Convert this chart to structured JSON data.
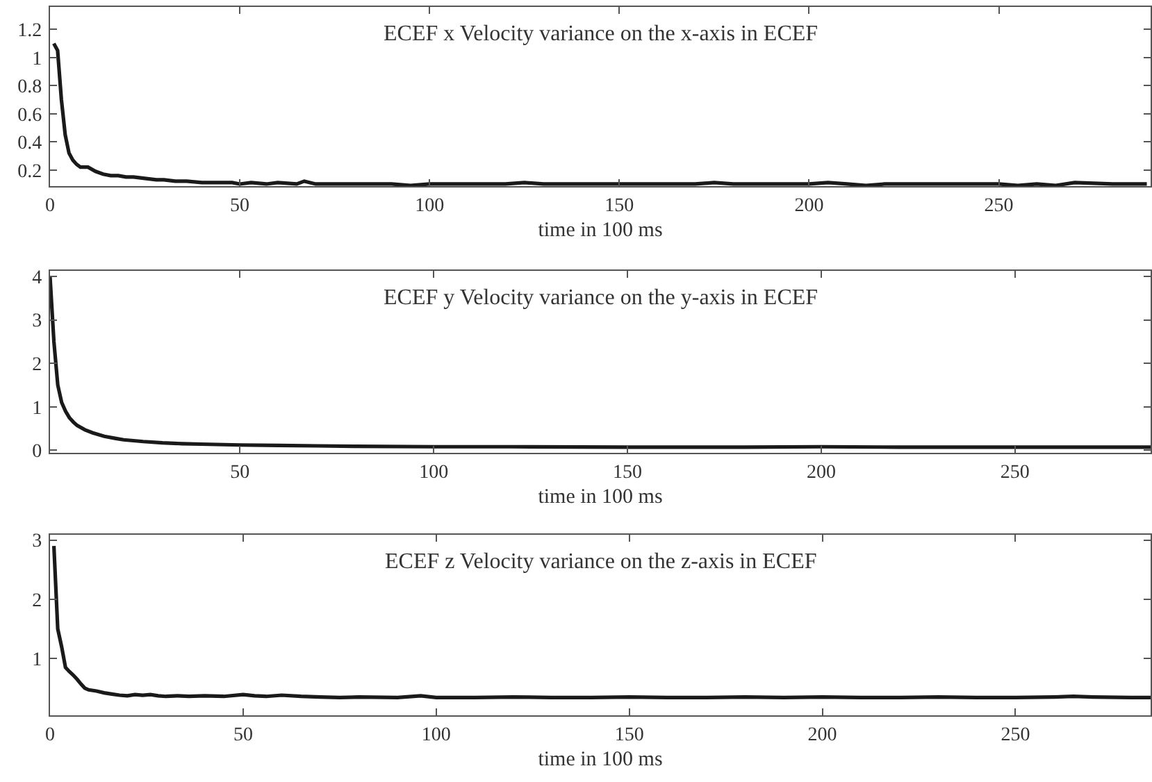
{
  "chart_data": [
    {
      "type": "line",
      "title": "ECEF x Velocity variance on the x-axis in ECEF",
      "xlabel": "time in 100 ms",
      "xlim": [
        0,
        290
      ],
      "ylim": [
        0.085,
        1.36
      ],
      "xticks": [
        0,
        50,
        100,
        150,
        200,
        250
      ],
      "yticks": [
        0.2,
        0.4,
        0.6,
        0.8,
        1,
        1.2
      ],
      "line_style": "solid",
      "x": [
        1,
        2,
        3,
        4,
        5,
        6,
        7,
        8,
        10,
        12,
        14,
        16,
        18,
        20,
        22,
        25,
        28,
        30,
        33,
        36,
        40,
        45,
        48,
        50,
        53,
        57,
        60,
        65,
        67,
        70,
        75,
        80,
        90,
        95,
        100,
        110,
        120,
        125,
        130,
        140,
        150,
        160,
        170,
        175,
        180,
        190,
        200,
        205,
        210,
        215,
        220,
        230,
        240,
        250,
        255,
        260,
        265,
        270,
        280,
        289
      ],
      "series": [
        {
          "color": "#1a1a1a",
          "values": [
            1.1,
            1.05,
            0.7,
            0.45,
            0.32,
            0.27,
            0.24,
            0.22,
            0.22,
            0.19,
            0.17,
            0.16,
            0.16,
            0.15,
            0.15,
            0.14,
            0.13,
            0.13,
            0.12,
            0.12,
            0.11,
            0.11,
            0.11,
            0.1,
            0.11,
            0.1,
            0.11,
            0.1,
            0.12,
            0.1,
            0.1,
            0.1,
            0.1,
            0.09,
            0.1,
            0.1,
            0.1,
            0.11,
            0.1,
            0.1,
            0.1,
            0.1,
            0.1,
            0.11,
            0.1,
            0.1,
            0.1,
            0.11,
            0.1,
            0.09,
            0.1,
            0.1,
            0.1,
            0.1,
            0.09,
            0.1,
            0.09,
            0.11,
            0.1,
            0.1
          ]
        }
      ]
    },
    {
      "type": "line",
      "title": "ECEF y Velocity variance on the y-axis in ECEF",
      "xlabel": "time in 100 ms",
      "xlim": [
        1,
        285
      ],
      "ylim": [
        -0.06,
        4.13
      ],
      "xticks": [
        50,
        100,
        150,
        200,
        250
      ],
      "yticks": [
        0,
        1,
        2,
        3,
        4
      ],
      "line_style": "solid",
      "x": [
        1,
        2,
        3,
        4,
        5,
        6,
        7,
        8,
        10,
        12,
        15,
        18,
        20,
        25,
        30,
        35,
        40,
        50,
        60,
        70,
        80,
        100,
        120,
        150,
        180,
        200,
        220,
        250,
        285
      ],
      "series": [
        {
          "color": "#1a1a1a",
          "values": [
            4.0,
            2.5,
            1.5,
            1.1,
            0.9,
            0.75,
            0.65,
            0.57,
            0.47,
            0.4,
            0.32,
            0.27,
            0.24,
            0.2,
            0.17,
            0.15,
            0.14,
            0.12,
            0.11,
            0.1,
            0.09,
            0.08,
            0.08,
            0.07,
            0.07,
            0.08,
            0.07,
            0.07,
            0.07
          ]
        }
      ]
    },
    {
      "type": "line",
      "title": "ECEF z Velocity variance on the z-axis in ECEF",
      "xlabel": "time in 100 ms",
      "xlim": [
        0,
        285
      ],
      "ylim": [
        0.04,
        3.09
      ],
      "xticks": [
        0,
        50,
        100,
        150,
        200,
        250
      ],
      "yticks": [
        1,
        2,
        3
      ],
      "line_style": "solid",
      "x": [
        1,
        2,
        3,
        4,
        5,
        6,
        7,
        8,
        9,
        10,
        12,
        14,
        16,
        18,
        20,
        22,
        24,
        26,
        28,
        30,
        33,
        36,
        40,
        45,
        50,
        53,
        56,
        60,
        65,
        70,
        75,
        80,
        90,
        96,
        100,
        110,
        120,
        130,
        140,
        150,
        160,
        170,
        180,
        190,
        200,
        210,
        220,
        230,
        240,
        250,
        260,
        265,
        270,
        280,
        285
      ],
      "series": [
        {
          "color": "#1a1a1a",
          "values": [
            2.9,
            1.5,
            1.2,
            0.85,
            0.78,
            0.72,
            0.65,
            0.57,
            0.5,
            0.47,
            0.45,
            0.42,
            0.4,
            0.38,
            0.37,
            0.39,
            0.38,
            0.39,
            0.37,
            0.36,
            0.37,
            0.36,
            0.37,
            0.36,
            0.39,
            0.37,
            0.36,
            0.38,
            0.36,
            0.35,
            0.34,
            0.35,
            0.34,
            0.37,
            0.34,
            0.34,
            0.35,
            0.34,
            0.34,
            0.35,
            0.34,
            0.34,
            0.35,
            0.34,
            0.35,
            0.34,
            0.34,
            0.35,
            0.34,
            0.34,
            0.35,
            0.36,
            0.35,
            0.34,
            0.34
          ]
        }
      ]
    }
  ]
}
